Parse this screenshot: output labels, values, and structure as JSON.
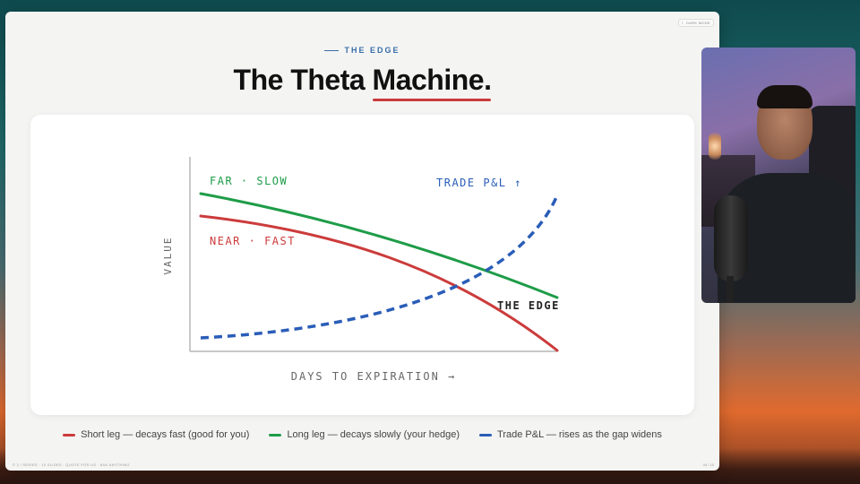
{
  "slide": {
    "dark_mode_label": "☾ DARK MODE",
    "kicker": "THE EDGE",
    "title_prefix": "The Theta ",
    "title_accent": "Machine.",
    "footer_left": "© 2 / SERIES · 10 SLIDES · QUOTE FOR US · ASK ANYTHING",
    "footer_right": "04 / 10"
  },
  "diagram": {
    "axis_y_label": "VALUE",
    "axis_x_label": "DAYS TO EXPIRATION →",
    "label_far": "FAR · SLOW",
    "label_near": "NEAR · FAST",
    "label_trade": "TRADE P&L ↑",
    "label_edge": "THE EDGE",
    "colors": {
      "short_leg": "#cc3b3b",
      "long_leg": "#1e9c48",
      "trade": "#2a5db8",
      "axis": "#aaaaaa"
    }
  },
  "legend": [
    {
      "label": "Short leg — decays fast (good for you)",
      "color": "#cc3b3b"
    },
    {
      "label": "Long leg — decays slowly (your hedge)",
      "color": "#1e9c48"
    },
    {
      "label": "Trade P&L — rises as the gap widens",
      "color": "#2a5db8"
    }
  ],
  "webcam": {
    "icon": "presenter-webcam"
  }
}
